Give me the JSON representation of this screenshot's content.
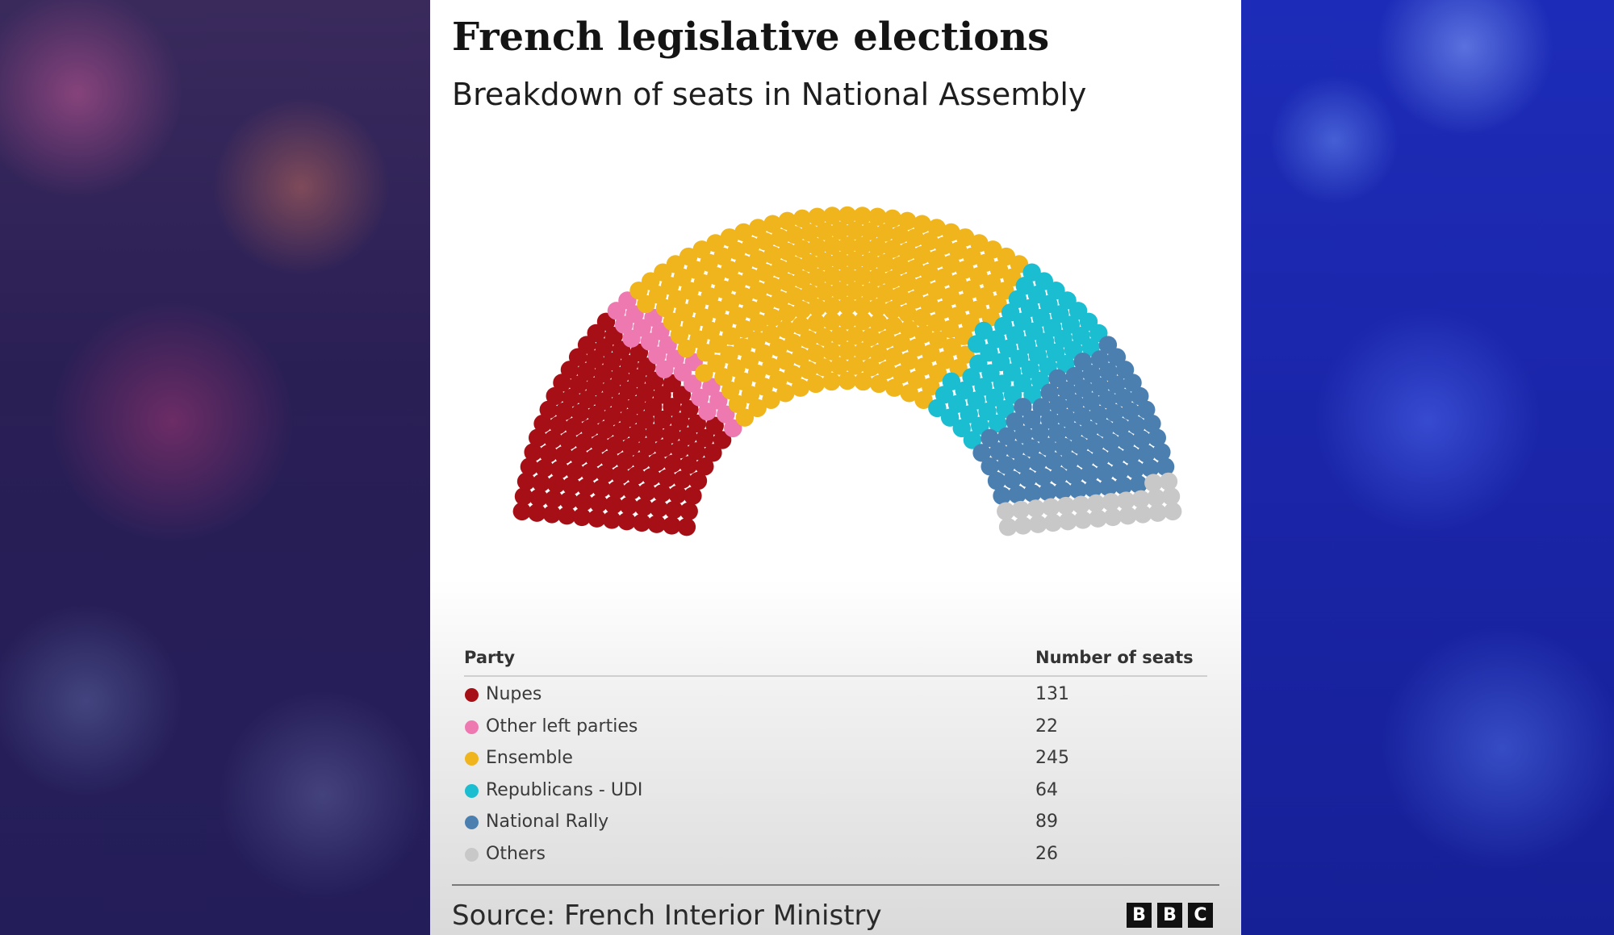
{
  "title": "French legislative elections",
  "subtitle": "Breakdown of seats in National Assembly",
  "table": {
    "party_header": "Party",
    "seats_header": "Number of seats"
  },
  "source": "Source: French Interior Ministry",
  "logo": [
    "B",
    "B",
    "C"
  ],
  "chart_data": {
    "type": "parliament",
    "total": 577,
    "series": [
      {
        "name": "Nupes",
        "value": 131,
        "display": "131",
        "color": "#a50f15"
      },
      {
        "name": "Other left parties",
        "value": 22,
        "display": "22",
        "color": "#ee79b1"
      },
      {
        "name": "Ensemble",
        "value": 245,
        "display": "245",
        "color": "#f0b51c"
      },
      {
        "name": "Republicans - UDI",
        "value": 64,
        "display": "64",
        "color": "#1bbdd1"
      },
      {
        "name": "National Rally",
        "value": 89,
        "display": "89",
        "color": "#4b7fb0"
      },
      {
        "name": "Others",
        "value": 26,
        "display": "26",
        "color": "#c8c8c8"
      }
    ]
  }
}
